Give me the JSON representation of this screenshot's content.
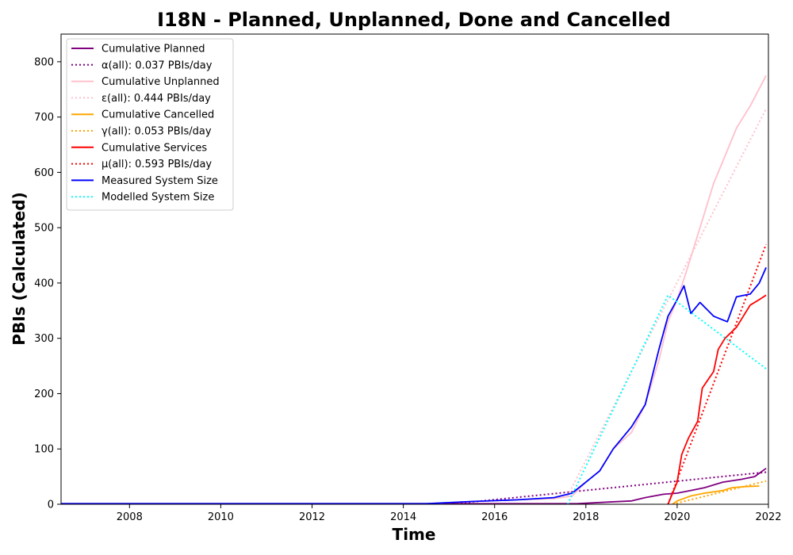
{
  "chart_data": {
    "type": "line",
    "title": "I18N - Planned, Unplanned, Done  and Cancelled",
    "xlabel": "Time",
    "ylabel": "PBIs (Calculated)",
    "xlim": [
      2006.5,
      2022.0
    ],
    "ylim": [
      0,
      850
    ],
    "x_ticks": [
      2008,
      2010,
      2012,
      2014,
      2016,
      2018,
      2020,
      2022
    ],
    "y_ticks": [
      0,
      100,
      200,
      300,
      400,
      500,
      600,
      700,
      800
    ],
    "grid": false,
    "legend_position": "top-left",
    "series": [
      {
        "name": "Cumulative Planned",
        "color": "#800080",
        "style": "solid",
        "points": [
          [
            2006.5,
            1
          ],
          [
            2015.0,
            1
          ],
          [
            2016.0,
            1
          ],
          [
            2017.0,
            1
          ],
          [
            2017.8,
            1
          ],
          [
            2018.5,
            4
          ],
          [
            2019.0,
            6
          ],
          [
            2019.3,
            12
          ],
          [
            2019.7,
            18
          ],
          [
            2020.0,
            20
          ],
          [
            2020.3,
            25
          ],
          [
            2020.6,
            30
          ],
          [
            2021.0,
            40
          ],
          [
            2021.4,
            45
          ],
          [
            2021.7,
            50
          ],
          [
            2021.95,
            65
          ]
        ]
      },
      {
        "name": "α(all): 0.037 PBIs/day",
        "color": "#800080",
        "style": "dotted",
        "points": [
          [
            2015.0,
            0
          ],
          [
            2021.95,
            58
          ]
        ]
      },
      {
        "name": "Cumulative Unplanned",
        "color": "#ffc0cb",
        "style": "solid",
        "points": [
          [
            2006.5,
            0
          ],
          [
            2014.5,
            1
          ],
          [
            2015.5,
            5
          ],
          [
            2016.5,
            8
          ],
          [
            2017.3,
            10
          ],
          [
            2017.7,
            15
          ],
          [
            2018.0,
            40
          ],
          [
            2018.3,
            60
          ],
          [
            2018.6,
            100
          ],
          [
            2019.0,
            130
          ],
          [
            2019.3,
            180
          ],
          [
            2019.6,
            260
          ],
          [
            2019.8,
            330
          ],
          [
            2020.0,
            370
          ],
          [
            2020.2,
            420
          ],
          [
            2020.5,
            500
          ],
          [
            2020.8,
            580
          ],
          [
            2021.0,
            620
          ],
          [
            2021.3,
            680
          ],
          [
            2021.6,
            720
          ],
          [
            2021.95,
            775
          ]
        ]
      },
      {
        "name": "ε(all): 0.444 PBIs/day",
        "color": "#ffc0cb",
        "style": "dotted",
        "points": [
          [
            2017.6,
            15
          ],
          [
            2021.95,
            715
          ]
        ]
      },
      {
        "name": "Cumulative Cancelled",
        "color": "#ffa500",
        "style": "solid",
        "points": [
          [
            2019.9,
            0
          ],
          [
            2020.0,
            6
          ],
          [
            2020.3,
            15
          ],
          [
            2020.6,
            20
          ],
          [
            2021.0,
            25
          ],
          [
            2021.2,
            30
          ],
          [
            2021.5,
            32
          ],
          [
            2021.8,
            33
          ]
        ]
      },
      {
        "name": "γ(all): 0.053 PBIs/day",
        "color": "#ffa500",
        "style": "dotted",
        "points": [
          [
            2019.9,
            0
          ],
          [
            2021.95,
            42
          ]
        ]
      },
      {
        "name": "Cumulative Services",
        "color": "#ff0000",
        "style": "solid",
        "points": [
          [
            2019.8,
            0
          ],
          [
            2020.0,
            40
          ],
          [
            2020.1,
            90
          ],
          [
            2020.25,
            120
          ],
          [
            2020.45,
            150
          ],
          [
            2020.55,
            210
          ],
          [
            2020.8,
            240
          ],
          [
            2020.9,
            280
          ],
          [
            2021.05,
            300
          ],
          [
            2021.3,
            320
          ],
          [
            2021.6,
            360
          ],
          [
            2021.8,
            370
          ],
          [
            2021.95,
            378
          ]
        ]
      },
      {
        "name": "μ(all): 0.593 PBIs/day",
        "color": "#ff0000",
        "style": "dotted",
        "points": [
          [
            2019.8,
            0
          ],
          [
            2021.95,
            470
          ]
        ]
      },
      {
        "name": "Measured System Size",
        "color": "#0000ff",
        "style": "solid",
        "points": [
          [
            2006.5,
            1
          ],
          [
            2014.5,
            1
          ],
          [
            2015.5,
            5
          ],
          [
            2016.5,
            8
          ],
          [
            2017.3,
            12
          ],
          [
            2017.7,
            20
          ],
          [
            2018.0,
            40
          ],
          [
            2018.3,
            60
          ],
          [
            2018.6,
            100
          ],
          [
            2019.0,
            140
          ],
          [
            2019.3,
            180
          ],
          [
            2019.6,
            280
          ],
          [
            2019.8,
            340
          ],
          [
            2020.0,
            370
          ],
          [
            2020.15,
            395
          ],
          [
            2020.3,
            345
          ],
          [
            2020.5,
            365
          ],
          [
            2020.8,
            340
          ],
          [
            2021.1,
            330
          ],
          [
            2021.3,
            375
          ],
          [
            2021.6,
            380
          ],
          [
            2021.8,
            400
          ],
          [
            2021.95,
            428
          ]
        ]
      },
      {
        "name": "Modelled System Size",
        "color": "#00ffff",
        "style": "dotted",
        "points": [
          [
            2017.6,
            0
          ],
          [
            2019.8,
            378
          ],
          [
            2021.95,
            245
          ]
        ]
      }
    ]
  }
}
